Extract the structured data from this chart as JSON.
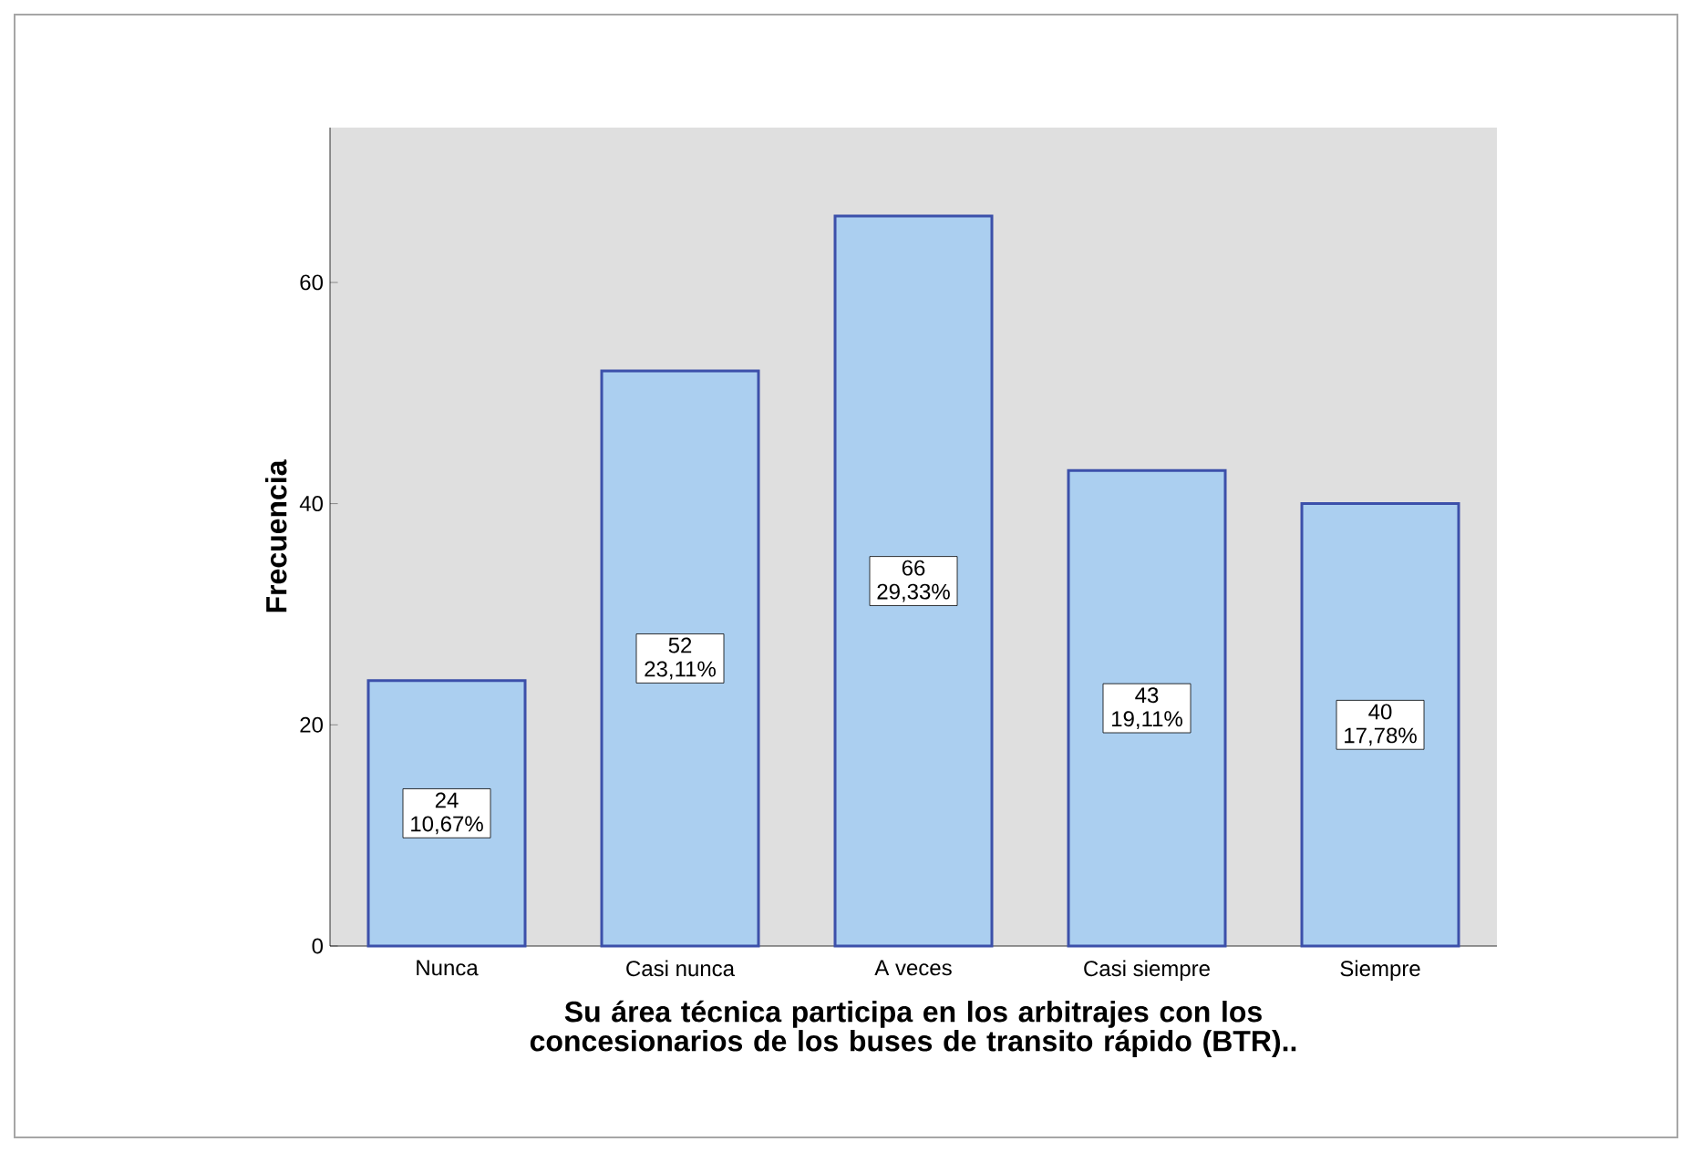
{
  "chart_data": {
    "type": "bar",
    "xlabel": "Su área técnica participa en los arbitrajes con los concesionarios de los buses de transito rápido  (BTR)..",
    "ylabel": "Frecuencia",
    "categories": [
      "Nunca",
      "Casi nunca",
      "A veces",
      "Casi siempre",
      "Siempre"
    ],
    "values": [
      24,
      52,
      66,
      43,
      40
    ],
    "value_labels": [
      "24 10,67%",
      "52 23,11%",
      "66 29,33%",
      "43 19,11%",
      "40 17,78%"
    ],
    "color": "#abcff0",
    "ylim": [
      0,
      74
    ],
    "yticks": [
      0,
      20,
      40,
      60
    ]
  }
}
